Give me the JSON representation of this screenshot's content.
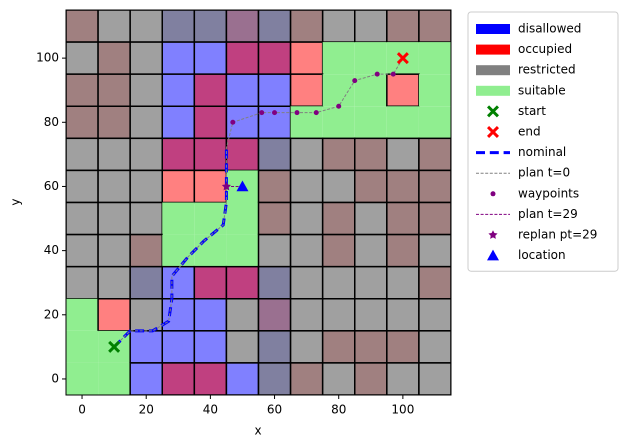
{
  "chart_data": {
    "type": "map-grid",
    "xlabel": "x",
    "ylabel": "y",
    "xlim": [
      -5,
      115
    ],
    "ylim": [
      -5,
      115
    ],
    "xticks": [
      0,
      20,
      40,
      60,
      80,
      100
    ],
    "yticks": [
      0,
      20,
      40,
      60,
      80,
      100
    ],
    "cells": {
      "x": [
        0,
        10,
        20,
        30,
        40,
        50,
        60,
        70,
        80,
        90,
        100,
        110
      ],
      "y": [
        110,
        100,
        90,
        80,
        70,
        60,
        50,
        40,
        30,
        20,
        10,
        0
      ],
      "colors": [
        [
          "#a08080",
          "#a0a0a0",
          "#a0a0a0",
          "#8080a0",
          "#8080a0",
          "#9a7090",
          "#8080a0",
          "#a08080",
          "#a0a0a0",
          "#a0a0a0",
          "#a08080",
          "#a08080"
        ],
        [
          "#a0a0a0",
          "#a08080",
          "#a0a0a0",
          "#8080ff",
          "#8080ff",
          "#c04080",
          "#c04080",
          "#ff8080",
          "#90ee90",
          "#90ee90",
          "#90ee90",
          "#90ee90"
        ],
        [
          "#a08080",
          "#a08080",
          "#a0a0a0",
          "#8080ff",
          "#c04080",
          "#8080ff",
          "#8080ff",
          "#ff8080",
          "#90ee90",
          "#90ee90",
          "#ff8080",
          "#90ee90"
        ],
        [
          "#a08080",
          "#a08080",
          "#a0a0a0",
          "#8080ff",
          "#c04080",
          "#8080ff",
          "#8080ff",
          "#90ee90",
          "#90ee90",
          "#90ee90",
          "#90ee90",
          "#90ee90"
        ],
        [
          "#a0a0a0",
          "#a0a0a0",
          "#a0a0a0",
          "#c04080",
          "#c04080",
          "#c04080",
          "#8080a0",
          "#a0a0a0",
          "#a08080",
          "#a08080",
          "#a0a0a0",
          "#a08080"
        ],
        [
          "#a0a0a0",
          "#a0a0a0",
          "#a0a0a0",
          "#ff8080",
          "#ff8080",
          "#90ee90",
          "#a08080",
          "#a0a0a0",
          "#a0a0a0",
          "#a08080",
          "#a08080",
          "#a08080"
        ],
        [
          "#a0a0a0",
          "#a0a0a0",
          "#a0a0a0",
          "#90ee90",
          "#90ee90",
          "#90ee90",
          "#a08080",
          "#a0a0a0",
          "#a08080",
          "#a0a0a0",
          "#a08080",
          "#a08080"
        ],
        [
          "#a0a0a0",
          "#a0a0a0",
          "#a08080",
          "#90ee90",
          "#90ee90",
          "#90ee90",
          "#a0a0a0",
          "#a0a0a0",
          "#a08080",
          "#a0a0a0",
          "#a08080",
          "#a0a0a0"
        ],
        [
          "#a0a0a0",
          "#a0a0a0",
          "#8080a0",
          "#8080ff",
          "#c04080",
          "#c04080",
          "#8080a0",
          "#a0a0a0",
          "#a0a0a0",
          "#a0a0a0",
          "#a0a0a0",
          "#a08080"
        ],
        [
          "#90ee90",
          "#ff8080",
          "#a0a0a0",
          "#8080ff",
          "#8080ff",
          "#a0a0a0",
          "#9a7090",
          "#a0a0a0",
          "#a0a0a0",
          "#a0a0a0",
          "#a0a0a0",
          "#a0a0a0"
        ],
        [
          "#90ee90",
          "#90ee90",
          "#8080ff",
          "#8080ff",
          "#8080ff",
          "#a0a0a0",
          "#8080a0",
          "#a0a0a0",
          "#a08080",
          "#a08080",
          "#a08080",
          "#a0a0a0"
        ],
        [
          "#90ee90",
          "#90ee90",
          "#8080ff",
          "#c04080",
          "#c04080",
          "#8080ff",
          "#8080a0",
          "#a08080",
          "#a0a0a0",
          "#a08080",
          "#a0a0a0",
          "#a0a0a0"
        ]
      ]
    },
    "regions": [
      {
        "name": "disallowed",
        "color": "#0000ff"
      },
      {
        "name": "occupied",
        "color": "#ff0000"
      },
      {
        "name": "restricted",
        "color": "#808080"
      },
      {
        "name": "suitable",
        "color": "#90ee90"
      }
    ],
    "series": [
      {
        "name": "start",
        "style": "marker",
        "marker": "X",
        "color": "#008000",
        "x": [
          10
        ],
        "y": [
          10
        ]
      },
      {
        "name": "end",
        "style": "marker",
        "marker": "X",
        "color": "#ff0000",
        "x": [
          100
        ],
        "y": [
          100
        ]
      },
      {
        "name": "nominal",
        "style": "line",
        "dash": true,
        "width": 3,
        "color": "#0000ff",
        "x": [
          10,
          15,
          22,
          27,
          28,
          28,
          33,
          38,
          44,
          45,
          45,
          45
        ],
        "y": [
          10,
          15,
          15,
          18,
          25,
          32,
          38,
          43,
          48,
          55,
          65,
          72
        ]
      },
      {
        "name": "plan t=0",
        "style": "line",
        "dash": true,
        "width": 1,
        "color": "#808080",
        "x": [
          10,
          15,
          22,
          27,
          28,
          28,
          33,
          38,
          44,
          45,
          45,
          45,
          47,
          56,
          60,
          67,
          73,
          80,
          85,
          92,
          97,
          100
        ],
        "y": [
          10,
          15,
          15,
          18,
          25,
          32,
          38,
          43,
          48,
          55,
          65,
          72,
          80,
          83,
          83,
          83,
          83,
          85,
          93,
          95,
          95,
          100
        ]
      },
      {
        "name": "waypoints",
        "style": "marker",
        "marker": "o",
        "color": "#800080",
        "x": [
          47,
          56,
          60,
          67,
          73,
          80,
          85,
          92,
          97
        ],
        "y": [
          80,
          83,
          83,
          83,
          83,
          85,
          93,
          95,
          95
        ]
      },
      {
        "name": "plan t=29",
        "style": "line",
        "dash": true,
        "width": 1,
        "color": "#800080",
        "x": [
          45,
          50
        ],
        "y": [
          60,
          60
        ]
      },
      {
        "name": "replan pt=29",
        "style": "marker",
        "marker": "*",
        "color": "#800080",
        "x": [
          45
        ],
        "y": [
          60
        ]
      },
      {
        "name": "location",
        "style": "marker",
        "marker": "^",
        "color": "#0000ff",
        "x": [
          50
        ],
        "y": [
          60
        ]
      }
    ]
  }
}
